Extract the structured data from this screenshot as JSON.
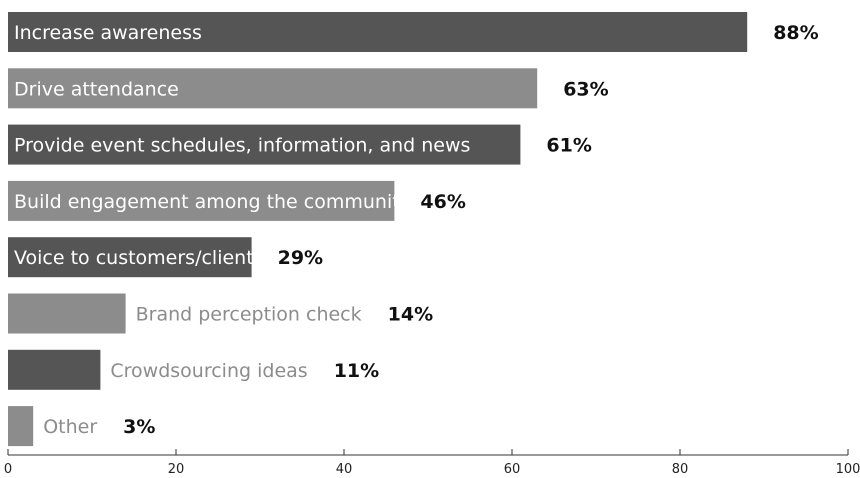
{
  "chart_data": {
    "type": "bar",
    "orientation": "horizontal",
    "categories": [
      "Increase awareness",
      "Drive attendance",
      "Provide event schedules, information, and news",
      "Build engagement among the community",
      "Voice to customers/clients",
      "Brand perception check",
      "Crowdsourcing ideas",
      "Other"
    ],
    "values": [
      88,
      63,
      61,
      46,
      29,
      14,
      11,
      3
    ],
    "value_labels": [
      "88%",
      "63%",
      "61%",
      "46%",
      "29%",
      "14%",
      "11%",
      "3%"
    ],
    "bar_colors": [
      "#555555",
      "#8c8c8c",
      "#555555",
      "#8c8c8c",
      "#555555",
      "#8c8c8c",
      "#555555",
      "#8c8c8c"
    ],
    "label_inside": [
      true,
      true,
      true,
      true,
      true,
      false,
      false,
      false
    ],
    "xlim": [
      0,
      100
    ],
    "xticks": [
      0,
      20,
      40,
      60,
      80,
      100
    ],
    "xtick_labels": [
      "0",
      "20",
      "40",
      "60",
      "80",
      "100"
    ],
    "grid": false,
    "title": "",
    "xlabel": "",
    "ylabel": ""
  }
}
